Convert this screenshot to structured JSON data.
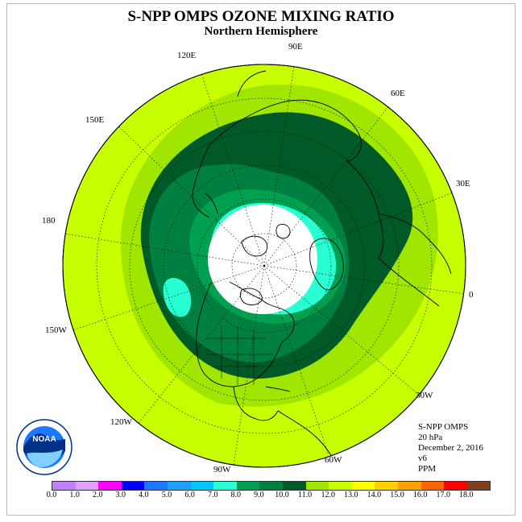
{
  "title": "S-NPP OMPS OZONE MIXING RATIO",
  "subtitle": "Northern Hemisphere",
  "longitude_labels": {
    "lon_90e": "90E",
    "lon_120e": "120E",
    "lon_60e": "60E",
    "lon_150e": "150E",
    "lon_30e": "30E",
    "lon_180": "180",
    "lon_0": "0",
    "lon_150w": "150W",
    "lon_30w": "30W",
    "lon_120w": "120W",
    "lon_60w": "60W",
    "lon_90w": "90W"
  },
  "info": {
    "instrument": "S-NPP OMPS",
    "level": "20 hPa",
    "date": "December 2, 2016",
    "version": "v6",
    "units": "PPM"
  },
  "logo_text": "NOAA",
  "colorbar": {
    "colors": [
      "#c080ff",
      "#e0a0ff",
      "#ff00ff",
      "#0000ff",
      "#1e78ff",
      "#1ea0ff",
      "#00c8ff",
      "#28ffd2",
      "#00a050",
      "#008040",
      "#005a28",
      "#a0e600",
      "#c8ff00",
      "#ffff00",
      "#ffd200",
      "#ffa000",
      "#ff6400",
      "#ff0000",
      "#804020"
    ],
    "ticks": [
      "0.0",
      "1.0",
      "2.0",
      "3.0",
      "4.0",
      "5.0",
      "6.0",
      "7.0",
      "8.0",
      "9.0",
      "10.0",
      "11.0",
      "12.0",
      "13.0",
      "14.0",
      "15.0",
      "16.0",
      "17.0",
      "18.0"
    ]
  }
}
